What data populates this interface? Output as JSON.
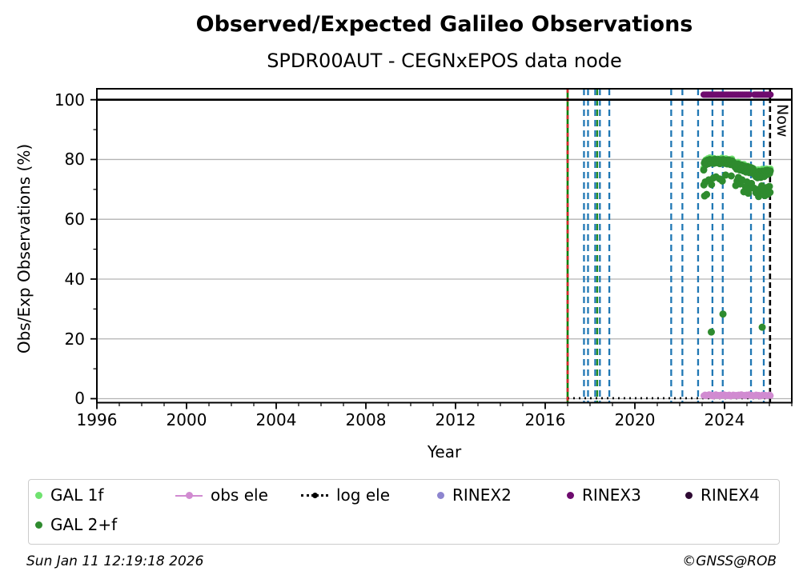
{
  "footer": {
    "timestamp": "Sun Jan 11 12:19:18 2026",
    "copyright": "©GNSS@ROB"
  },
  "chart_data": {
    "type": "scatter",
    "title": "Observed/Expected Galileo Observations",
    "subtitle": "SPDR00AUT - CEGNxEPOS data node",
    "xlabel": "Year",
    "ylabel": "Obs/Exp Observations (%)",
    "xlim": [
      1996,
      2027
    ],
    "ylim": [
      -1.34,
      103.66
    ],
    "x_major_ticks": [
      1996,
      2000,
      2004,
      2008,
      2012,
      2016,
      2020,
      2024
    ],
    "y_major_ticks": [
      0,
      20,
      40,
      60,
      80,
      100
    ],
    "grid": "horizontal",
    "grid_color": "#b3b3b3",
    "hline_y": 100,
    "legend_position": "below",
    "events": {
      "data_start": {
        "x": 2017.0,
        "solid_color": "#007f00",
        "dash_color": "#d62728"
      },
      "blue_dashed_x": [
        2017.73,
        2017.91,
        2018.23,
        2018.44,
        2018.86,
        2021.62,
        2022.12,
        2022.82,
        2023.46,
        2023.92,
        2025.18,
        2025.75
      ],
      "blue_color": "#1f77b4",
      "green_dashed_x": [
        2018.32
      ],
      "green_color": "#228b22",
      "now": {
        "x": 2026.03,
        "label": "Now",
        "color": "#000000"
      }
    },
    "series": [
      {
        "name": "GAL 1f",
        "color": "#6fe26f",
        "marker": "circle",
        "marker_radius": 4.2,
        "points": [
          [
            2023.07,
            77.2
          ],
          [
            2023.16,
            79.9
          ],
          [
            2023.25,
            80.3
          ],
          [
            2023.34,
            80.6
          ],
          [
            2023.43,
            80.1
          ],
          [
            2023.52,
            80.4
          ],
          [
            2023.61,
            79.8
          ],
          [
            2023.7,
            80.2
          ],
          [
            2023.79,
            79.9
          ],
          [
            2023.88,
            80.5
          ],
          [
            2023.97,
            79.7
          ],
          [
            2024.06,
            80.3
          ],
          [
            2024.15,
            79.8
          ],
          [
            2024.24,
            80.0
          ],
          [
            2024.33,
            80.2
          ],
          [
            2024.42,
            78.8
          ],
          [
            2024.51,
            78.9
          ],
          [
            2024.6,
            79.1
          ],
          [
            2024.69,
            77.5
          ],
          [
            2024.78,
            78.3
          ],
          [
            2024.87,
            78.4
          ],
          [
            2024.96,
            77.0
          ],
          [
            2025.05,
            77.8
          ],
          [
            2025.14,
            77.4
          ],
          [
            2025.23,
            77.2
          ],
          [
            2025.32,
            76.8
          ],
          [
            2025.41,
            76.3
          ],
          [
            2025.5,
            76.6
          ],
          [
            2025.59,
            76.4
          ],
          [
            2025.68,
            76.8
          ],
          [
            2025.77,
            76.2
          ],
          [
            2025.86,
            76.9
          ],
          [
            2025.95,
            76.7
          ],
          [
            2026.04,
            76.9
          ]
        ]
      },
      {
        "name": "GAL 2+f",
        "color": "#2e8b2e",
        "marker": "circle",
        "marker_radius": 4.5,
        "points": [
          [
            2023.07,
            76.5
          ],
          [
            2023.1,
            78.8
          ],
          [
            2023.13,
            79.3
          ],
          [
            2023.16,
            78.2
          ],
          [
            2023.19,
            79.6
          ],
          [
            2023.22,
            79.0
          ],
          [
            2023.25,
            79.8
          ],
          [
            2023.28,
            78.6
          ],
          [
            2023.31,
            79.2
          ],
          [
            2023.34,
            80.0
          ],
          [
            2023.37,
            79.4
          ],
          [
            2023.4,
            78.8
          ],
          [
            2023.43,
            79.7
          ],
          [
            2023.46,
            79.1
          ],
          [
            2023.49,
            79.9
          ],
          [
            2023.52,
            78.7
          ],
          [
            2023.55,
            79.3
          ],
          [
            2023.58,
            80.1
          ],
          [
            2023.61,
            79.0
          ],
          [
            2023.64,
            79.6
          ],
          [
            2023.67,
            78.9
          ],
          [
            2023.7,
            79.4
          ],
          [
            2023.73,
            80.0
          ],
          [
            2023.76,
            79.2
          ],
          [
            2023.79,
            78.6
          ],
          [
            2023.82,
            79.5
          ],
          [
            2023.85,
            79.9
          ],
          [
            2023.88,
            78.8
          ],
          [
            2023.91,
            79.3
          ],
          [
            2023.94,
            80.0
          ],
          [
            2023.97,
            79.1
          ],
          [
            2024.0,
            78.7
          ],
          [
            2024.03,
            79.5
          ],
          [
            2024.06,
            79.0
          ],
          [
            2024.09,
            79.8
          ],
          [
            2024.12,
            78.5
          ],
          [
            2024.15,
            79.2
          ],
          [
            2024.18,
            79.9
          ],
          [
            2024.21,
            78.8
          ],
          [
            2024.24,
            79.4
          ],
          [
            2024.27,
            78.3
          ],
          [
            2024.3,
            79.0
          ],
          [
            2024.33,
            79.6
          ],
          [
            2024.36,
            78.4
          ],
          [
            2024.39,
            79.1
          ],
          [
            2024.42,
            78.0
          ],
          [
            2024.45,
            78.6
          ],
          [
            2024.48,
            77.4
          ],
          [
            2024.51,
            78.2
          ],
          [
            2024.54,
            76.8
          ],
          [
            2024.57,
            77.9
          ],
          [
            2024.6,
            78.5
          ],
          [
            2024.63,
            77.0
          ],
          [
            2024.66,
            78.1
          ],
          [
            2024.69,
            76.5
          ],
          [
            2024.72,
            77.6
          ],
          [
            2024.75,
            78.2
          ],
          [
            2024.78,
            76.9
          ],
          [
            2024.81,
            77.5
          ],
          [
            2024.84,
            76.2
          ],
          [
            2024.87,
            77.8
          ],
          [
            2024.9,
            76.5
          ],
          [
            2024.93,
            77.1
          ],
          [
            2024.96,
            75.8
          ],
          [
            2024.99,
            76.9
          ],
          [
            2025.02,
            77.6
          ],
          [
            2025.05,
            76.1
          ],
          [
            2025.08,
            77.0
          ],
          [
            2025.11,
            75.6
          ],
          [
            2025.14,
            76.7
          ],
          [
            2025.17,
            77.3
          ],
          [
            2025.2,
            75.9
          ],
          [
            2025.23,
            76.5
          ],
          [
            2025.26,
            77.0
          ],
          [
            2025.29,
            75.4
          ],
          [
            2025.32,
            76.2
          ],
          [
            2025.35,
            74.8
          ],
          [
            2025.38,
            75.9
          ],
          [
            2025.41,
            74.2
          ],
          [
            2025.44,
            75.5
          ],
          [
            2025.47,
            73.9
          ],
          [
            2025.5,
            75.0
          ],
          [
            2025.53,
            76.0
          ],
          [
            2025.56,
            74.5
          ],
          [
            2025.59,
            75.7
          ],
          [
            2025.62,
            74.0
          ],
          [
            2025.65,
            75.3
          ],
          [
            2025.68,
            76.1
          ],
          [
            2025.71,
            74.6
          ],
          [
            2025.74,
            75.8
          ],
          [
            2025.77,
            74.3
          ],
          [
            2025.8,
            75.5
          ],
          [
            2025.83,
            76.3
          ],
          [
            2025.86,
            74.9
          ],
          [
            2025.89,
            75.6
          ],
          [
            2025.92,
            76.4
          ],
          [
            2025.95,
            75.1
          ],
          [
            2025.98,
            76.0
          ],
          [
            2026.01,
            75.4
          ],
          [
            2026.04,
            76.2
          ],
          [
            2023.08,
            71.5
          ],
          [
            2023.11,
            67.8
          ],
          [
            2023.14,
            72.5
          ],
          [
            2023.2,
            68.3
          ],
          [
            2023.3,
            73.2
          ],
          [
            2023.42,
            71.6
          ],
          [
            2023.5,
            73.8
          ],
          [
            2023.62,
            74.2
          ],
          [
            2023.78,
            73.5
          ],
          [
            2023.9,
            72.8
          ],
          [
            2024.05,
            74.8
          ],
          [
            2024.3,
            74.5
          ],
          [
            2024.5,
            71.3
          ],
          [
            2024.56,
            72.8
          ],
          [
            2024.62,
            74.0
          ],
          [
            2024.7,
            71.8
          ],
          [
            2024.78,
            73.2
          ],
          [
            2024.86,
            69.2
          ],
          [
            2024.94,
            70.8
          ],
          [
            2025.0,
            72.5
          ],
          [
            2025.06,
            68.7
          ],
          [
            2025.12,
            70.2
          ],
          [
            2025.2,
            72.0
          ],
          [
            2025.3,
            70.5
          ],
          [
            2025.4,
            68.9
          ],
          [
            2025.46,
            70.0
          ],
          [
            2025.52,
            67.6
          ],
          [
            2025.6,
            69.4
          ],
          [
            2025.66,
            71.2
          ],
          [
            2025.74,
            69.8
          ],
          [
            2025.8,
            67.9
          ],
          [
            2025.88,
            70.6
          ],
          [
            2025.94,
            68.4
          ],
          [
            2026.0,
            71.0
          ],
          [
            2026.03,
            69.0
          ],
          [
            2023.41,
            22.3
          ],
          [
            2023.93,
            28.3
          ],
          [
            2025.68,
            23.9
          ]
        ]
      },
      {
        "name": "obs ele",
        "color": "#d18bd1",
        "marker": "circle-line",
        "marker_radius": 4,
        "points": [
          [
            2023.07,
            1.0
          ],
          [
            2023.13,
            1.3
          ],
          [
            2023.19,
            0.9
          ],
          [
            2023.25,
            1.2
          ],
          [
            2023.31,
            1.4
          ],
          [
            2023.37,
            1.0
          ],
          [
            2023.43,
            1.3
          ],
          [
            2023.49,
            0.8
          ],
          [
            2023.55,
            1.1
          ],
          [
            2023.61,
            1.4
          ],
          [
            2023.67,
            1.0
          ],
          [
            2023.73,
            1.2
          ],
          [
            2023.79,
            0.9
          ],
          [
            2023.85,
            1.3
          ],
          [
            2023.91,
            1.1
          ],
          [
            2023.97,
            1.4
          ],
          [
            2024.03,
            0.9
          ],
          [
            2024.09,
            1.2
          ],
          [
            2024.15,
            1.0
          ],
          [
            2024.21,
            1.3
          ],
          [
            2024.27,
            0.8
          ],
          [
            2024.33,
            1.1
          ],
          [
            2024.39,
            1.3
          ],
          [
            2024.45,
            1.0
          ],
          [
            2024.51,
            1.2
          ],
          [
            2024.57,
            0.9
          ],
          [
            2024.63,
            1.3
          ],
          [
            2024.69,
            1.1
          ],
          [
            2024.75,
            1.4
          ],
          [
            2024.81,
            1.0
          ],
          [
            2024.87,
            1.2
          ],
          [
            2024.93,
            0.9
          ],
          [
            2024.99,
            1.3
          ],
          [
            2025.05,
            1.1
          ],
          [
            2025.11,
            1.4
          ],
          [
            2025.17,
            1.0
          ],
          [
            2025.23,
            1.2
          ],
          [
            2025.29,
            0.9
          ],
          [
            2025.35,
            1.1
          ],
          [
            2025.41,
            1.3
          ],
          [
            2025.47,
            1.0
          ],
          [
            2025.53,
            1.2
          ],
          [
            2025.59,
            0.8
          ],
          [
            2025.65,
            1.1
          ],
          [
            2025.71,
            1.3
          ],
          [
            2025.77,
            1.0
          ],
          [
            2025.83,
            1.2
          ],
          [
            2025.89,
            0.9
          ],
          [
            2025.95,
            1.1
          ],
          [
            2026.01,
            1.3
          ],
          [
            2026.05,
            1.0
          ]
        ]
      },
      {
        "name": "log ele",
        "color": "#000000",
        "marker": "dotted-line",
        "points": [
          [
            2017.0,
            0.15
          ],
          [
            2026.03,
            0.15
          ]
        ]
      },
      {
        "name": "RINEX2",
        "color": "#8d85cf",
        "marker": "circle",
        "marker_radius": 4,
        "points": []
      },
      {
        "name": "RINEX3",
        "color": "#6e0b6e",
        "marker": "circle",
        "marker_radius": 4,
        "points": [
          [
            2023.07,
            101.7
          ],
          [
            2023.13,
            101.7
          ],
          [
            2023.19,
            101.7
          ],
          [
            2023.25,
            101.7
          ],
          [
            2023.31,
            101.7
          ],
          [
            2023.37,
            101.7
          ],
          [
            2023.43,
            101.7
          ],
          [
            2023.49,
            101.7
          ],
          [
            2023.55,
            101.7
          ],
          [
            2023.61,
            101.7
          ],
          [
            2023.67,
            101.7
          ],
          [
            2023.73,
            101.7
          ],
          [
            2023.79,
            101.7
          ],
          [
            2023.85,
            101.7
          ],
          [
            2023.91,
            101.7
          ],
          [
            2023.97,
            101.7
          ],
          [
            2024.03,
            101.7
          ],
          [
            2024.09,
            101.7
          ],
          [
            2024.15,
            101.7
          ],
          [
            2024.21,
            101.7
          ],
          [
            2024.27,
            101.7
          ],
          [
            2024.33,
            101.7
          ],
          [
            2024.39,
            101.7
          ],
          [
            2024.45,
            101.7
          ],
          [
            2024.51,
            101.7
          ],
          [
            2024.57,
            101.7
          ],
          [
            2024.63,
            101.7
          ],
          [
            2024.69,
            101.7
          ],
          [
            2024.75,
            101.7
          ],
          [
            2024.81,
            101.7
          ],
          [
            2024.87,
            101.7
          ],
          [
            2024.93,
            101.7
          ],
          [
            2024.99,
            101.7
          ],
          [
            2025.05,
            101.7
          ],
          [
            2025.11,
            101.7
          ],
          [
            2025.33,
            101.7
          ],
          [
            2025.39,
            101.7
          ],
          [
            2025.45,
            101.7
          ],
          [
            2025.51,
            101.7
          ],
          [
            2025.57,
            101.7
          ],
          [
            2025.63,
            101.7
          ],
          [
            2025.69,
            101.7
          ],
          [
            2025.75,
            101.7
          ],
          [
            2025.81,
            101.7
          ],
          [
            2025.87,
            101.7
          ],
          [
            2025.93,
            101.7
          ],
          [
            2025.99,
            101.7
          ],
          [
            2026.05,
            101.7
          ]
        ]
      },
      {
        "name": "RINEX4",
        "color": "#2e0933",
        "marker": "circle",
        "marker_radius": 4,
        "points": []
      }
    ]
  }
}
